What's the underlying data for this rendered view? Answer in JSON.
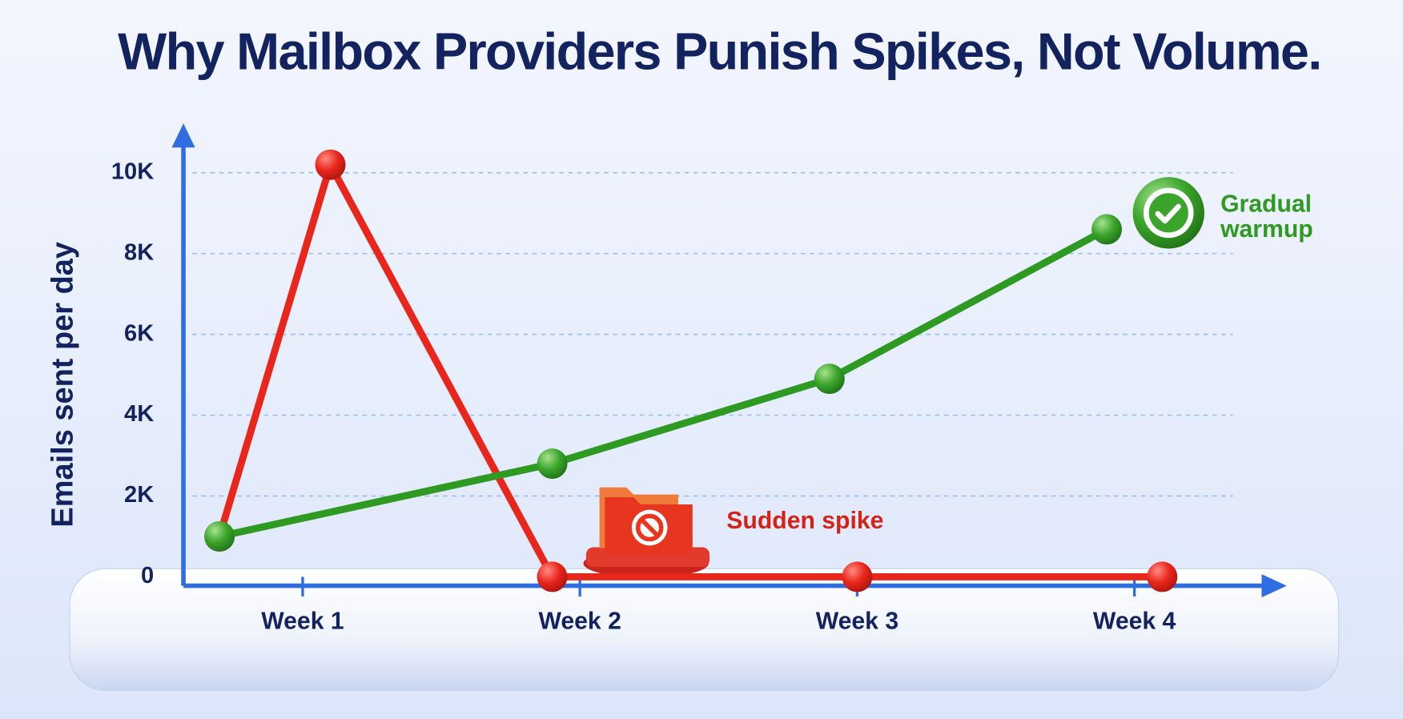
{
  "chart_data": {
    "type": "line",
    "title": "Why Mailbox Providers Punish Spikes, Not Volume.",
    "y_label": "Emails sent per day",
    "xlim": [
      0.57,
      4.52
    ],
    "xticks": [
      {
        "value": 1,
        "label": "Week 1"
      },
      {
        "value": 2,
        "label": "Week 2"
      },
      {
        "value": 3,
        "label": "Week 3"
      },
      {
        "value": 4,
        "label": "Week 4"
      }
    ],
    "ylim": [
      0,
      11000
    ],
    "yticks": [
      0,
      {
        "value": 2000,
        "label": "2K"
      },
      {
        "value": 4000,
        "label": "4K"
      },
      {
        "value": 6000,
        "label": "6K"
      },
      {
        "value": 8000,
        "label": "8K"
      },
      {
        "value": 10000,
        "label": "10K"
      }
    ],
    "grid": true,
    "series": [
      {
        "name": "Sudden spike",
        "color": "#e8261c",
        "x": [
          0.7,
          1.1,
          1.9,
          3.0,
          4.1
        ],
        "values": [
          1000,
          10200,
          0,
          0,
          0
        ]
      },
      {
        "name": "Gradual warmup",
        "color": "#2e9a22",
        "x": [
          0.7,
          1.9,
          2.9,
          3.9
        ],
        "values": [
          1000,
          2800,
          4900,
          8600
        ]
      }
    ]
  }
}
